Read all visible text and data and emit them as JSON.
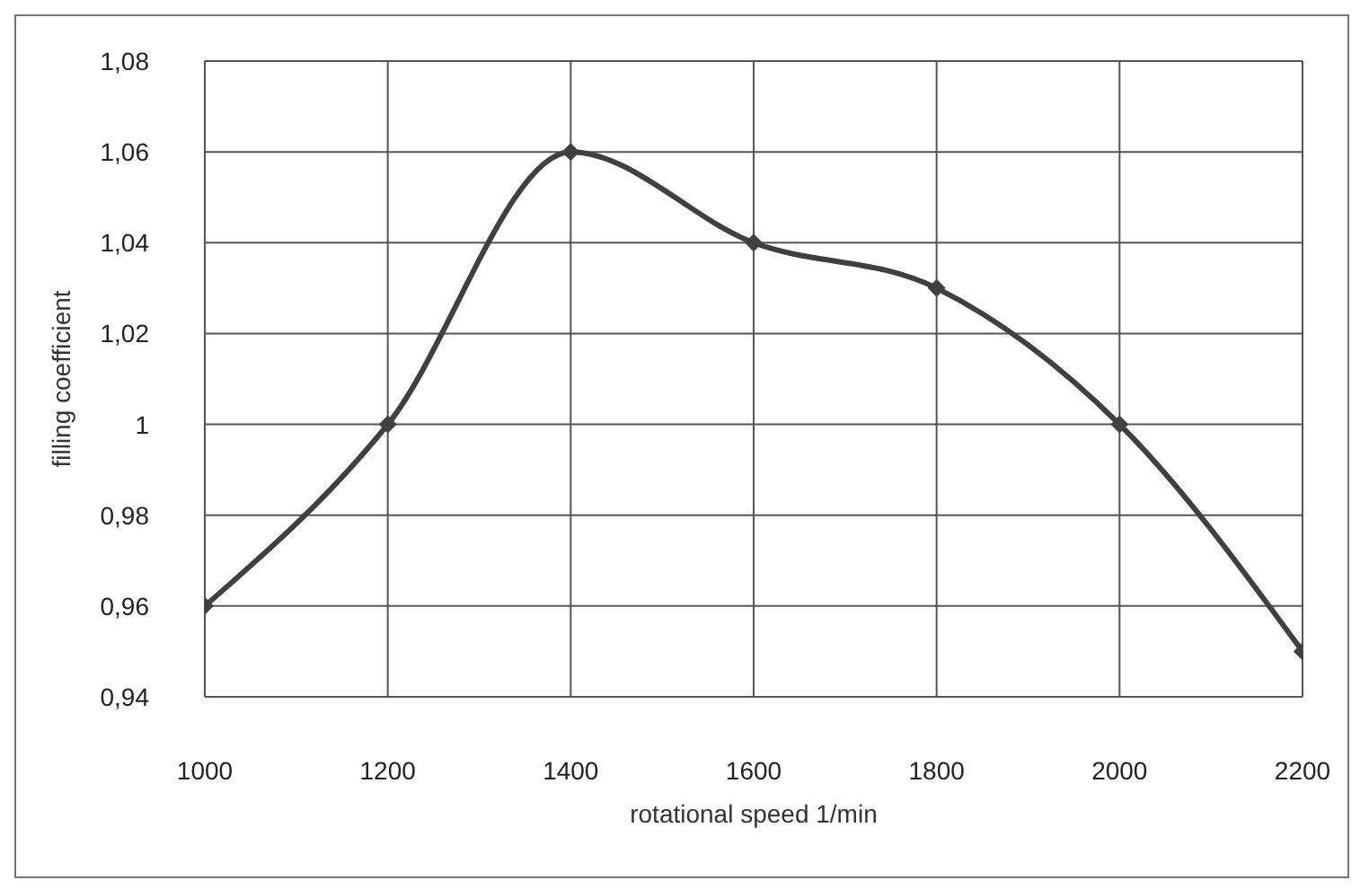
{
  "chart_data": {
    "type": "line",
    "xlabel": "rotational speed 1/min",
    "ylabel": "filling coefficient",
    "x": [
      1000,
      1200,
      1400,
      1600,
      1800,
      2000,
      2200
    ],
    "series": [
      {
        "color": "#404040",
        "values": [
          0.96,
          1.0,
          1.06,
          1.04,
          1.03,
          1.0,
          0.95
        ]
      }
    ],
    "xlim": [
      1000,
      2200
    ],
    "xticks": [
      1000,
      1200,
      1400,
      1600,
      1800,
      2000,
      2200
    ],
    "ylim": [
      0.94,
      1.08
    ],
    "yticks": [
      {
        "value": 0.94,
        "label": "0,94"
      },
      {
        "value": 0.96,
        "label": "0,96"
      },
      {
        "value": 0.98,
        "label": "0,98"
      },
      {
        "value": 1,
        "label": "1"
      },
      {
        "value": 1.02,
        "label": "1,02"
      },
      {
        "value": 1.04,
        "label": "1,04"
      },
      {
        "value": 1.06,
        "label": "1,06"
      },
      {
        "value": 1.08,
        "label": "1,08"
      }
    ],
    "grid": true,
    "marker": "diamond",
    "line_style": "solid",
    "legend": false
  }
}
